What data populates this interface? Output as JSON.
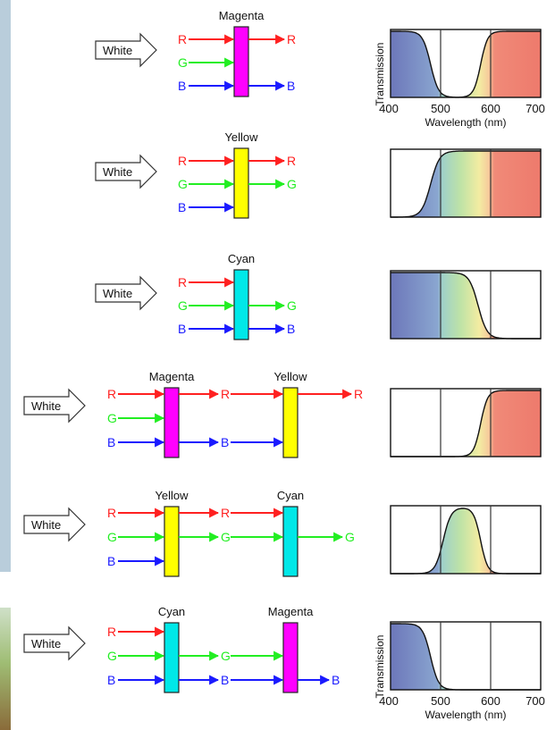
{
  "diagrams": [
    {
      "source_label": "White",
      "filters": [
        "Magenta"
      ],
      "inputs": [
        "R",
        "G",
        "B"
      ],
      "outputs_after_filters": [
        [
          "R",
          "B"
        ]
      ],
      "spectrum": {
        "pass_bands": [
          "blue",
          "red"
        ]
      }
    },
    {
      "source_label": "White",
      "filters": [
        "Yellow"
      ],
      "inputs": [
        "R",
        "G",
        "B"
      ],
      "outputs_after_filters": [
        [
          "R",
          "G"
        ]
      ],
      "spectrum": {
        "pass_bands": [
          "green",
          "red"
        ]
      }
    },
    {
      "source_label": "White",
      "filters": [
        "Cyan"
      ],
      "inputs": [
        "R",
        "G",
        "B"
      ],
      "outputs_after_filters": [
        [
          "G",
          "B"
        ]
      ],
      "spectrum": {
        "pass_bands": [
          "blue",
          "green"
        ]
      }
    },
    {
      "source_label": "White",
      "filters": [
        "Magenta",
        "Yellow"
      ],
      "inputs": [
        "R",
        "G",
        "B"
      ],
      "outputs_after_filters": [
        [
          "R",
          "B"
        ],
        [
          "R"
        ]
      ],
      "spectrum": {
        "pass_bands": [
          "red"
        ]
      }
    },
    {
      "source_label": "White",
      "filters": [
        "Yellow",
        "Cyan"
      ],
      "inputs": [
        "R",
        "G",
        "B"
      ],
      "outputs_after_filters": [
        [
          "R",
          "G"
        ],
        [
          "G"
        ]
      ],
      "spectrum": {
        "pass_bands": [
          "green"
        ]
      }
    },
    {
      "source_label": "White",
      "filters": [
        "Cyan",
        "Magenta"
      ],
      "inputs": [
        "R",
        "G",
        "B"
      ],
      "outputs_after_filters": [
        [
          "G",
          "B"
        ],
        [
          "B"
        ]
      ],
      "spectrum": {
        "pass_bands": [
          "blue"
        ]
      }
    }
  ],
  "plot_axes": {
    "ylabel": "Transmission",
    "xlabel": "Wavelength (nm)",
    "xticks": [
      "400",
      "500",
      "600",
      "700"
    ],
    "xlim": [
      400,
      700
    ],
    "ylim": [
      0,
      1
    ]
  },
  "colors": {
    "R": "#ff2020",
    "G": "#22ee22",
    "B": "#1a1aff",
    "Magenta": "#ff00ff",
    "Yellow": "#ffff00",
    "Cyan": "#00e8e8"
  }
}
